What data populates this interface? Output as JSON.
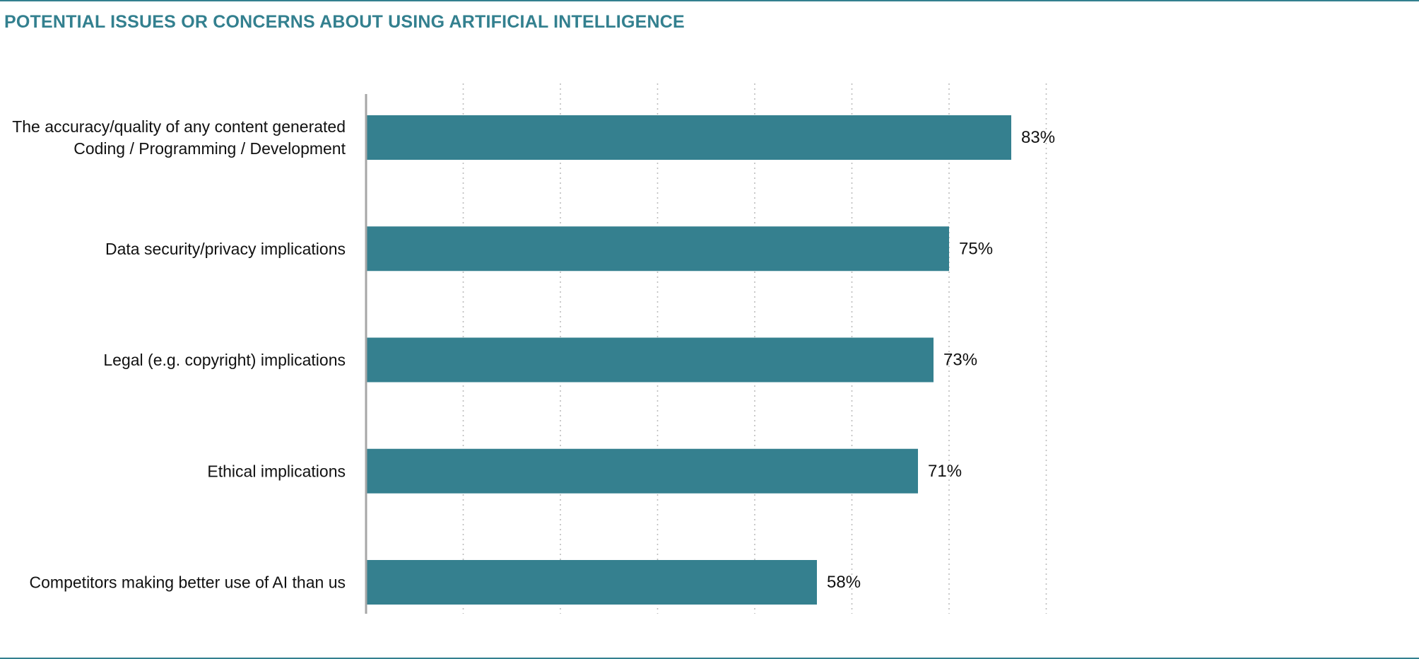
{
  "title": "POTENTIAL ISSUES OR CONCERNS ABOUT USING ARTIFICIAL INTELLIGENCE",
  "colors": {
    "bar": "#35808f",
    "accent": "#33808f",
    "gridline": "#bdbdbd",
    "axis": "#a6a6a6",
    "text": "#111111"
  },
  "chart_data": {
    "type": "bar",
    "orientation": "horizontal",
    "title": "POTENTIAL ISSUES OR CONCERNS ABOUT USING ARTIFICIAL INTELLIGENCE",
    "categories": [
      [
        "The accuracy/quality of any content generated",
        "Coding / Programming / Development"
      ],
      [
        "Data security/privacy implications"
      ],
      [
        "Legal (e.g. copyright) implications"
      ],
      [
        "Ethical implications"
      ],
      [
        "Competitors making better use of AI than us"
      ]
    ],
    "values": [
      83,
      75,
      73,
      71,
      58
    ],
    "value_labels": [
      "83%",
      "75%",
      "73%",
      "71%",
      "58%"
    ],
    "unit": "%",
    "xlim": [
      0,
      87.5
    ],
    "grid": "vertical dotted",
    "xlabel": "",
    "ylabel": ""
  }
}
